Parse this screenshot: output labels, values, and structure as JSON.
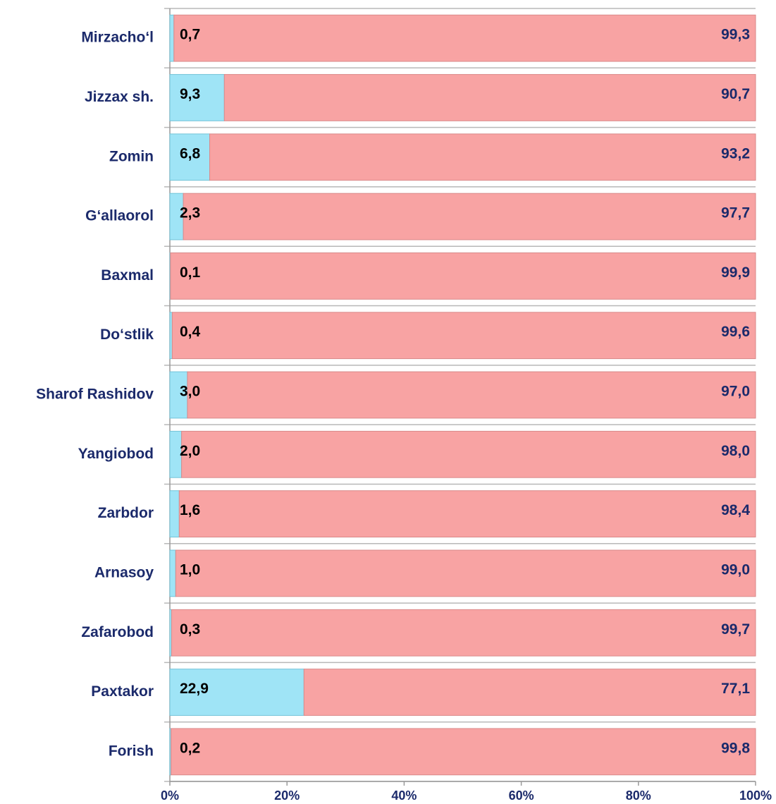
{
  "chart_data": {
    "type": "stacked_bar_horizontal",
    "categories": [
      "Mirzacho‘l",
      "Jizzax sh.",
      "Zomin",
      "G‘allaorol",
      "Baxmal",
      "Do‘stlik",
      "Sharof Rashidov",
      "Yangiobod",
      "Zarbdor",
      "Arnasoy",
      "Zafarobod",
      "Paxtakor",
      "Forish"
    ],
    "series": [
      {
        "color": "#9fe4f6",
        "values": [
          0.7,
          9.3,
          6.8,
          2.3,
          0.1,
          0.4,
          3.0,
          2.0,
          1.6,
          1.0,
          0.3,
          22.9,
          0.2
        ],
        "value_labels": [
          "0,7",
          "9,3",
          "6,8",
          "2,3",
          "0,1",
          "0,4",
          "3,0",
          "2,0",
          "1,6",
          "1,0",
          "0,3",
          "22,9",
          "0,2"
        ]
      },
      {
        "color": "#f8a3a3",
        "values": [
          99.3,
          90.7,
          93.2,
          97.7,
          99.9,
          99.6,
          97.0,
          98.0,
          98.4,
          99.0,
          99.7,
          77.1,
          99.8
        ],
        "value_labels": [
          "99,3",
          "90,7",
          "93,2",
          "97,7",
          "99,9",
          "99,6",
          "97,0",
          "98,0",
          "98,4",
          "99,0",
          "99,7",
          "77,1",
          "99,8"
        ]
      }
    ],
    "xlim": [
      0,
      100
    ],
    "xticks": [
      {
        "value": 0,
        "label": "0%"
      },
      {
        "value": 20,
        "label": "20%"
      },
      {
        "value": 40,
        "label": "40%"
      },
      {
        "value": 60,
        "label": "60%"
      },
      {
        "value": 80,
        "label": "80%"
      },
      {
        "value": 100,
        "label": "100%"
      }
    ]
  }
}
